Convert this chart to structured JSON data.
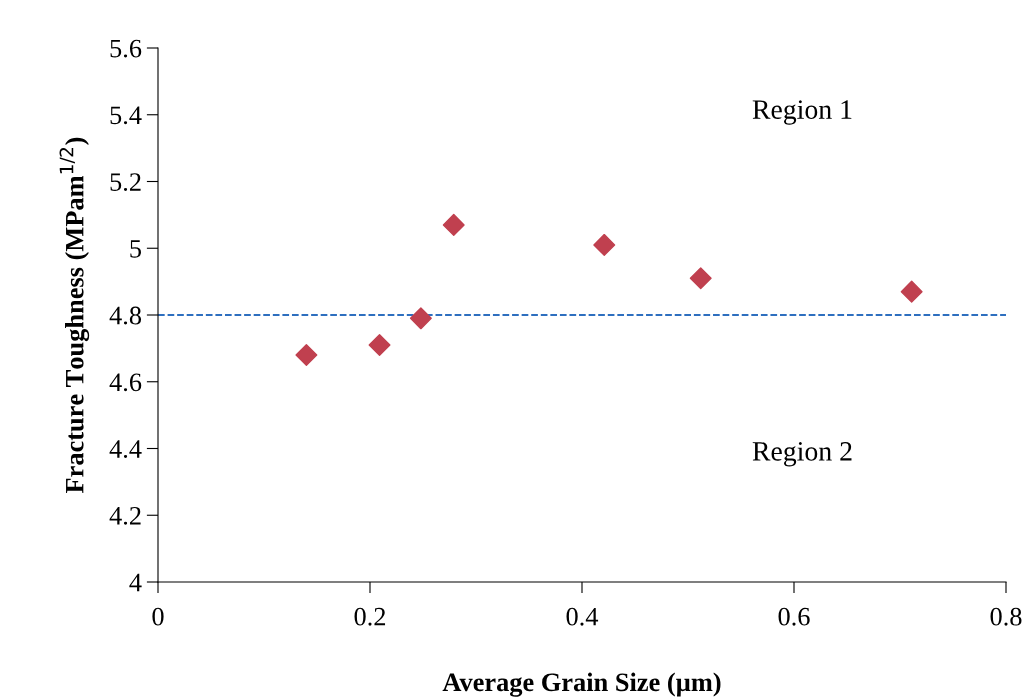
{
  "chart_data": {
    "type": "scatter",
    "xlabel": "Average Grain Size (µm)",
    "ylabel": "Fracture Toughness (MPam$^{1/2}$)",
    "x": [
      0.14,
      0.209,
      0.248,
      0.279,
      0.421,
      0.512,
      0.711
    ],
    "series": [
      {
        "color": "#c0404f",
        "values": [
          4.68,
          4.71,
          4.79,
          5.07,
          5.01,
          4.91,
          4.87
        ]
      }
    ],
    "xlim": [
      0,
      0.8
    ],
    "xticks": [
      0,
      0.2,
      0.4,
      0.6,
      0.8
    ],
    "ylim": [
      4,
      5.6
    ],
    "yticks": [
      4,
      4.2,
      4.4,
      4.6,
      4.8,
      5,
      5.2,
      5.4,
      5.6
    ],
    "ref_lines": [
      {
        "axis": "y",
        "value": 4.8,
        "color": "#2e6fbf",
        "line_style": "dashed"
      }
    ],
    "annotations": [
      "Region 1",
      "Region 2"
    ],
    "marker": "diamond",
    "grid": false,
    "legend": false
  }
}
